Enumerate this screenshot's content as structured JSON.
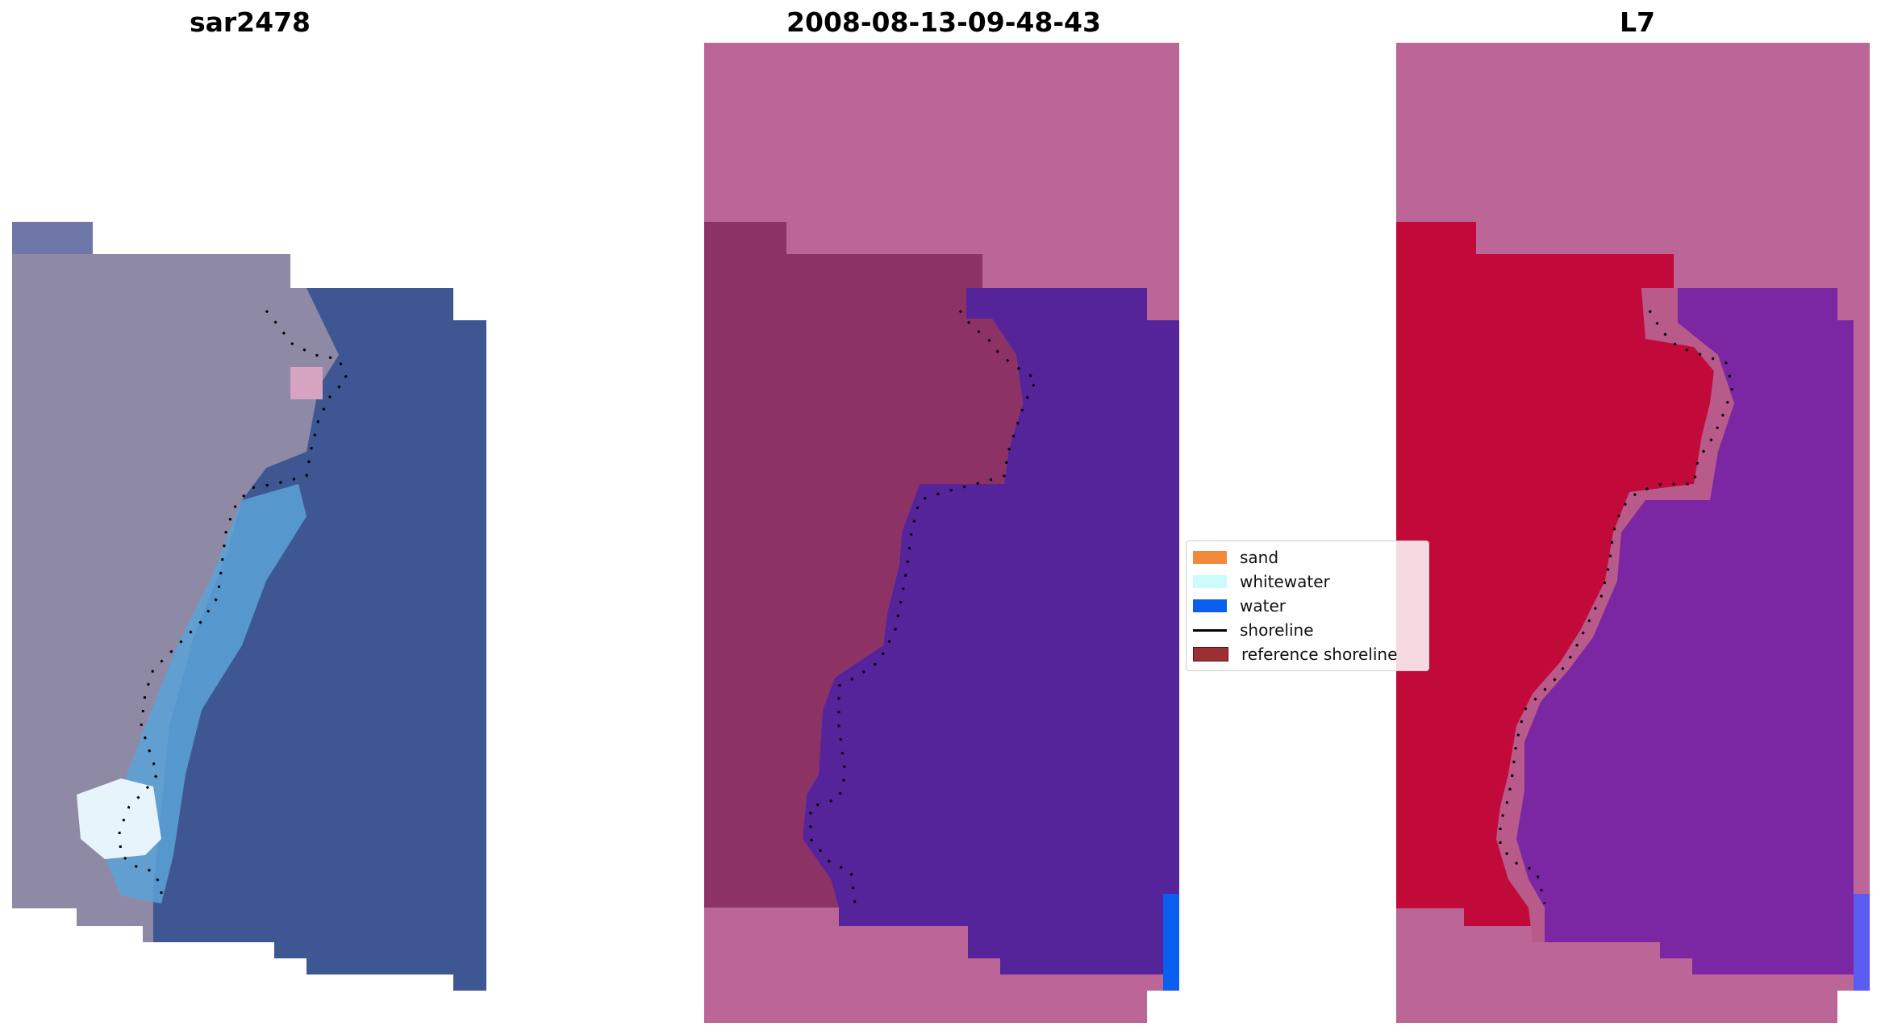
{
  "panels": [
    {
      "title": "sar2478"
    },
    {
      "title": "2008-08-13-09-48-43"
    },
    {
      "title": "L7"
    }
  ],
  "legend": {
    "items": [
      {
        "label": "sand",
        "color": "#f28a3c",
        "kind": "patch"
      },
      {
        "label": "whitewater",
        "color": "#ccfbfb",
        "kind": "patch"
      },
      {
        "label": "water",
        "color": "#0a5ef0",
        "kind": "patch"
      },
      {
        "label": "shoreline",
        "color": "#000000",
        "kind": "line"
      },
      {
        "label": "reference shoreline",
        "color": "#9b2f33",
        "kind": "patch"
      }
    ]
  },
  "colors": {
    "nodata": "#bc6698",
    "water_class": "#55239a",
    "water_edge": "#0a5ef0",
    "ndwi_land": "#c10a3a",
    "ndwi_water": "#7b26a2",
    "rgb_land": "#8e8aa5",
    "rgb_water": "#3e5792",
    "rgb_surf": "#5aa2d8"
  }
}
